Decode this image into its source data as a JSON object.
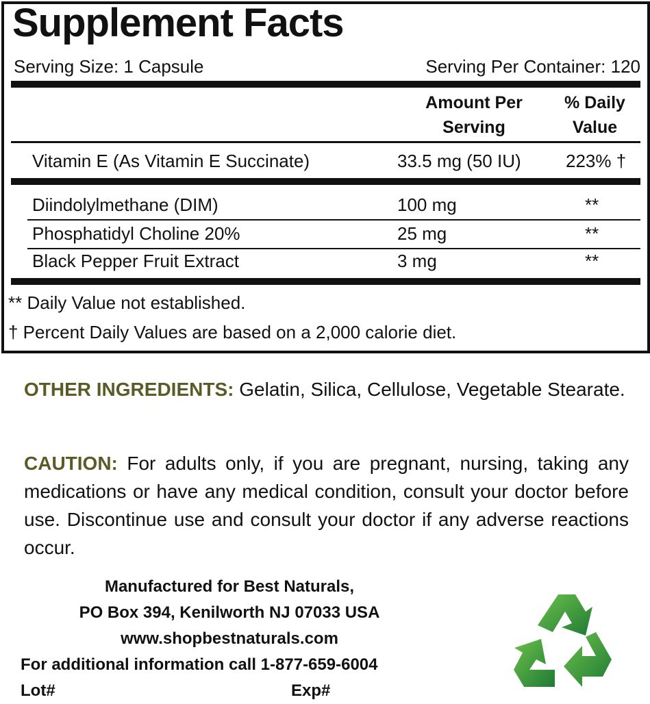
{
  "facts": {
    "title": "Supplement Facts",
    "serving_size": "Serving Size: 1 Capsule",
    "servings_per_container": "Serving Per Container: 120",
    "header_amount": [
      "Amount Per",
      "Serving"
    ],
    "header_dv": [
      "% Daily",
      "Value"
    ],
    "vitamins": [
      {
        "name": "Vitamin E (As Vitamin E Succinate)",
        "amount": "33.5 mg (50 IU)",
        "dv": "223% †"
      }
    ],
    "other": [
      {
        "name": "Diindolylmethane (DIM)",
        "amount": "100 mg",
        "dv": "**"
      },
      {
        "name": "Phosphatidyl Choline 20%",
        "amount": "25 mg",
        "dv": "**"
      },
      {
        "name": "Black Pepper Fruit Extract",
        "amount": "3 mg",
        "dv": "**"
      }
    ],
    "footnotes": [
      "** Daily Value not established.",
      "† Percent Daily Values are based on a 2,000 calorie diet."
    ]
  },
  "other_ingredients": {
    "label": "OTHER INGREDIENTS:",
    "text": "Gelatin, Silica, Cellulose, Vegetable Stearate."
  },
  "caution": {
    "label": "CAUTION:",
    "text": "For adults only, if you are pregnant, nursing, taking any medications or have any medical condition, consult your doctor before use. Discontinue use and consult your doctor if any adverse reactions occur."
  },
  "manufacturer": {
    "line1": "Manufactured for Best Naturals,",
    "line2": "PO Box 394, Kenilworth NJ 07033 USA",
    "website": "www.shopbestnaturals.com",
    "phone": "For additional information call 1-877-659-6004",
    "lot": "Lot#",
    "exp": "Exp#"
  },
  "icons": {
    "recycle": "recycle-icon"
  },
  "colors": {
    "label": "#5a5b26",
    "recycle_light": "#5cb343",
    "recycle_dark": "#1f7a35"
  }
}
